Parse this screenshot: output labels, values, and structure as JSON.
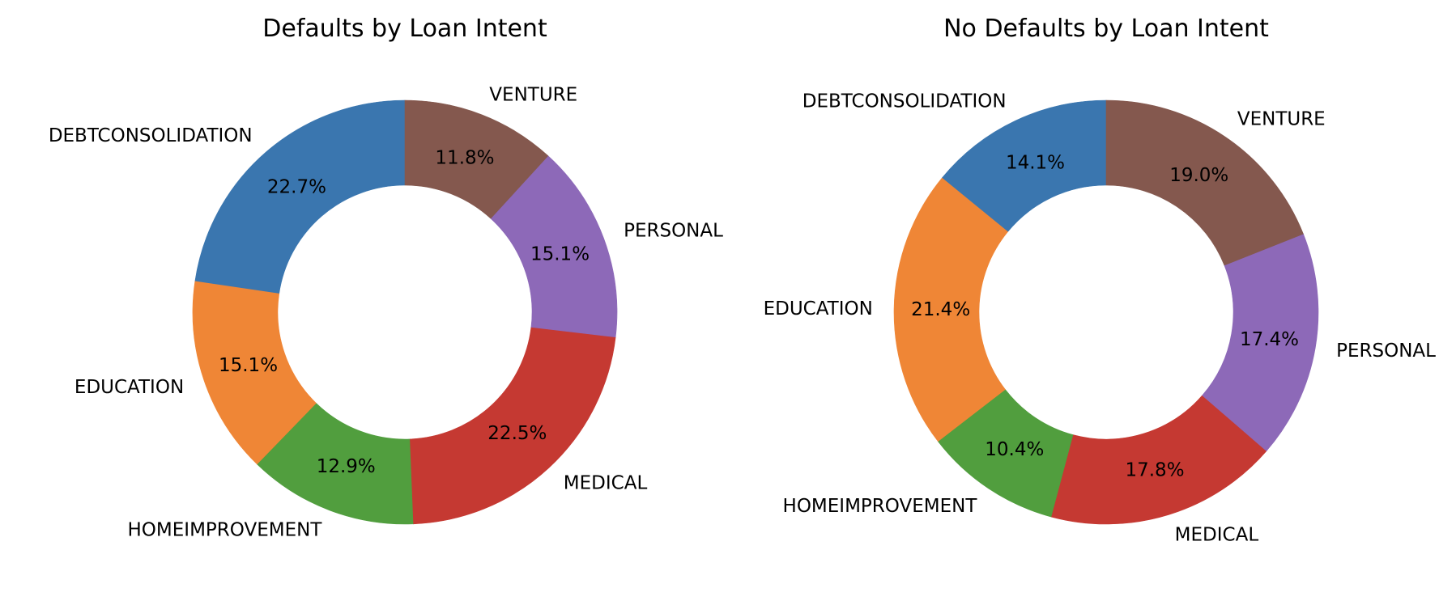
{
  "chart_data": [
    {
      "type": "pie",
      "subtype": "donut",
      "title": "Defaults by Loan Intent",
      "categories": [
        "DEBTCONSOLIDATION",
        "EDUCATION",
        "HOMEIMPROVEMENT",
        "MEDICAL",
        "PERSONAL",
        "VENTURE"
      ],
      "values": [
        22.7,
        15.1,
        12.9,
        22.5,
        15.1,
        11.8
      ],
      "value_labels": [
        "22.7%",
        "15.1%",
        "12.9%",
        "22.5%",
        "15.1%",
        "11.8%"
      ],
      "start_angle_deg": 90,
      "direction": "counterclockwise",
      "legend": "none",
      "colors": [
        "#3a76af",
        "#ef8636",
        "#519e3e",
        "#c53932",
        "#8d69b8",
        "#84584e"
      ]
    },
    {
      "type": "pie",
      "subtype": "donut",
      "title": "No Defaults by Loan Intent",
      "categories": [
        "DEBTCONSOLIDATION",
        "EDUCATION",
        "HOMEIMPROVEMENT",
        "MEDICAL",
        "PERSONAL",
        "VENTURE"
      ],
      "values": [
        14.1,
        21.4,
        10.4,
        17.8,
        17.4,
        19.0
      ],
      "value_labels": [
        "14.1%",
        "21.4%",
        "10.4%",
        "17.8%",
        "17.4%",
        "19.0%"
      ],
      "start_angle_deg": 90,
      "direction": "counterclockwise",
      "legend": "none",
      "colors": [
        "#3a76af",
        "#ef8636",
        "#519e3e",
        "#c53932",
        "#8d69b8",
        "#84584e"
      ]
    }
  ]
}
